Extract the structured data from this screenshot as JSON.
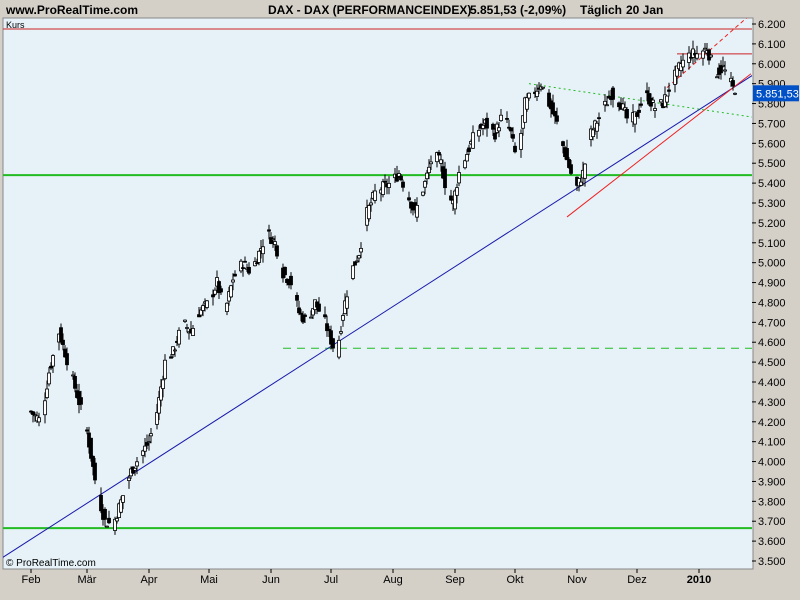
{
  "header": {
    "site": "www.ProRealTime.com",
    "instrument": "DAX - DAX (PERFORMANCEINDEX)",
    "quote": "5.851,53 (-2,09%)",
    "period": "Täglich",
    "date": "20 Jan"
  },
  "panel_label": "Kurs",
  "copyright": "© ProRealTime.com",
  "last_price_label": "5.851,53",
  "colors": {
    "panel_bg": "#e6f2f8",
    "frame_bg": "#d4d0c8",
    "up_candle": "#ffffff",
    "down_candle": "#000000",
    "support_green": "#22bb22",
    "trend_blue": "#1a1aaa",
    "channel_red": "#ee2222",
    "resistance_red": "#cc2222",
    "price_tag": "#0050c8"
  },
  "chart_data": {
    "type": "candlestick",
    "title": "DAX - DAX (PERFORMANCEINDEX)",
    "ylim": [
      3500,
      6200
    ],
    "y_ticks": [
      3500,
      3600,
      3700,
      3800,
      3900,
      4000,
      4100,
      4200,
      4300,
      4400,
      4500,
      4600,
      4700,
      4800,
      4900,
      5000,
      5100,
      5200,
      5300,
      5400,
      5500,
      5600,
      5700,
      5800,
      5900,
      6000,
      6100,
      6200
    ],
    "y_tick_labels": [
      "3.500",
      "3.600",
      "3.700",
      "3.800",
      "3.900",
      "4.000",
      "4.100",
      "4.200",
      "4.300",
      "4.400",
      "4.500",
      "4.600",
      "4.700",
      "4.800",
      "4.900",
      "5.000",
      "5.100",
      "5.200",
      "5.300",
      "5.400",
      "5.500",
      "5.600",
      "5.700",
      "5.800",
      "5.900",
      "6.000",
      "6.100",
      "6.200"
    ],
    "x_labels": [
      "Feb",
      "Mär",
      "Apr",
      "Mai",
      "Jun",
      "Jul",
      "Aug",
      "Sep",
      "Okt",
      "Nov",
      "Dez",
      "2010"
    ],
    "x_label_days": [
      0,
      28,
      59,
      89,
      120,
      150,
      181,
      212,
      242,
      273,
      303,
      334
    ],
    "last_close": 5851.53,
    "grid": false,
    "close_path": [
      [
        0,
        4250
      ],
      [
        5,
        4200
      ],
      [
        9,
        4450
      ],
      [
        14,
        4650
      ],
      [
        19,
        4480
      ],
      [
        24,
        4300
      ],
      [
        28,
        4150
      ],
      [
        33,
        3850
      ],
      [
        37,
        3700
      ],
      [
        41,
        3680
      ],
      [
        45,
        3800
      ],
      [
        50,
        3950
      ],
      [
        54,
        4020
      ],
      [
        59,
        4100
      ],
      [
        63,
        4250
      ],
      [
        67,
        4500
      ],
      [
        71,
        4550
      ],
      [
        76,
        4700
      ],
      [
        80,
        4650
      ],
      [
        84,
        4750
      ],
      [
        89,
        4800
      ],
      [
        93,
        4900
      ],
      [
        97,
        4750
      ],
      [
        101,
        4920
      ],
      [
        106,
        5000
      ],
      [
        110,
        4950
      ],
      [
        114,
        5050
      ],
      [
        118,
        5150
      ],
      [
        122,
        5100
      ],
      [
        126,
        4950
      ],
      [
        130,
        4900
      ],
      [
        134,
        4750
      ],
      [
        138,
        4700
      ],
      [
        142,
        4800
      ],
      [
        147,
        4700
      ],
      [
        151,
        4580
      ],
      [
        153,
        4550
      ],
      [
        156,
        4750
      ],
      [
        160,
        4950
      ],
      [
        164,
        5050
      ],
      [
        168,
        5250
      ],
      [
        172,
        5350
      ],
      [
        176,
        5380
      ],
      [
        180,
        5400
      ],
      [
        184,
        5450
      ],
      [
        188,
        5350
      ],
      [
        192,
        5250
      ],
      [
        197,
        5400
      ],
      [
        201,
        5550
      ],
      [
        205,
        5500
      ],
      [
        208,
        5350
      ],
      [
        211,
        5300
      ],
      [
        214,
        5450
      ],
      [
        218,
        5550
      ],
      [
        222,
        5650
      ],
      [
        227,
        5700
      ],
      [
        232,
        5650
      ],
      [
        236,
        5750
      ],
      [
        240,
        5650
      ],
      [
        243,
        5500
      ],
      [
        247,
        5800
      ],
      [
        251,
        5850
      ],
      [
        255,
        5900
      ],
      [
        259,
        5800
      ],
      [
        263,
        5700
      ],
      [
        267,
        5550
      ],
      [
        270,
        5450
      ],
      [
        273,
        5380
      ],
      [
        276,
        5450
      ],
      [
        280,
        5650
      ],
      [
        285,
        5750
      ],
      [
        290,
        5850
      ],
      [
        295,
        5800
      ],
      [
        299,
        5700
      ],
      [
        303,
        5750
      ],
      [
        307,
        5850
      ],
      [
        312,
        5780
      ],
      [
        316,
        5800
      ],
      [
        320,
        5900
      ],
      [
        325,
        6000
      ],
      [
        330,
        6050
      ],
      [
        334,
        6050
      ],
      [
        338,
        6080
      ],
      [
        342,
        5950
      ],
      [
        346,
        5980
      ],
      [
        350,
        5900
      ],
      [
        352,
        5851.53
      ]
    ],
    "support_lines": [
      3665,
      5440
    ],
    "dashed_support": 4570,
    "resistance_line": 6050,
    "trendline": {
      "from": [
        -20,
        3480
      ],
      "to": [
        362,
        5950
      ]
    },
    "channel_upper": {
      "from": [
        318,
        5880
      ],
      "to": [
        360,
        6250
      ]
    },
    "channel_lower": {
      "from": [
        268,
        5230
      ],
      "to": [
        360,
        5950
      ]
    },
    "dotted_resistance": {
      "from": [
        249,
        5900
      ],
      "to": [
        362,
        5730
      ]
    }
  }
}
